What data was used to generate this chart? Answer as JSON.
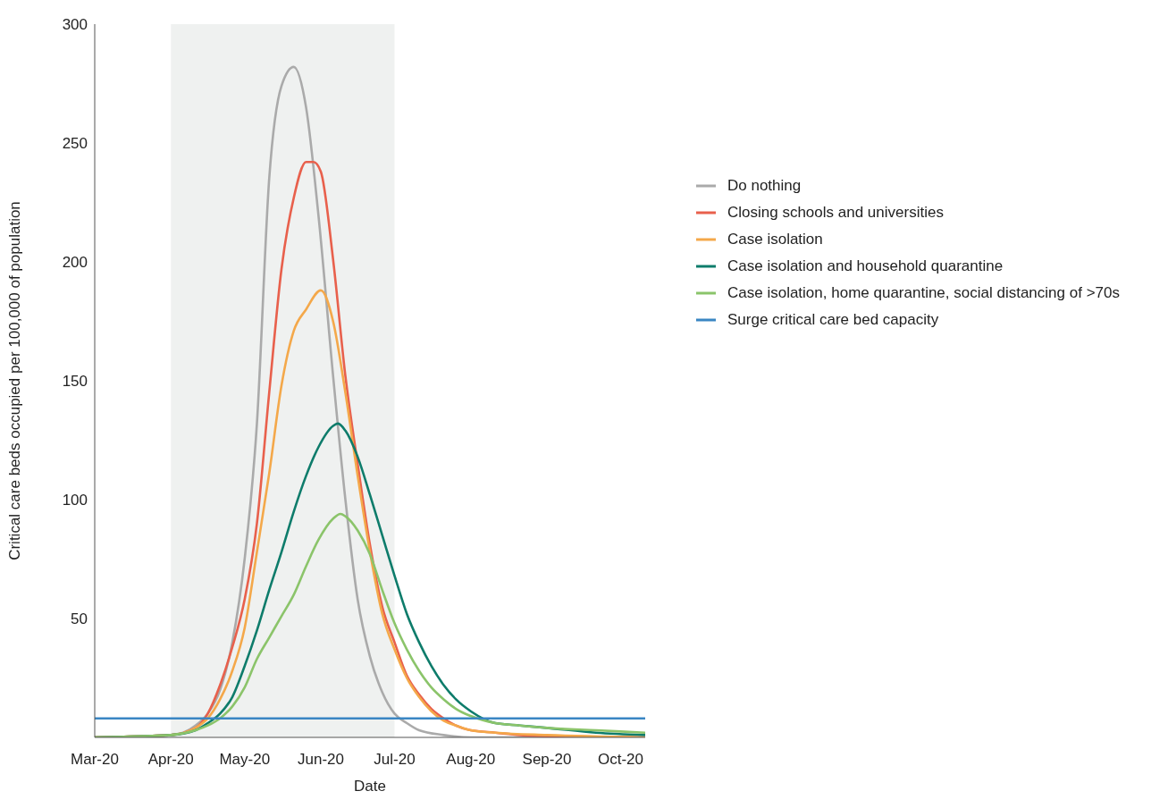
{
  "chart_data": {
    "type": "line",
    "xlabel": "Date",
    "ylabel": "Critical care beds occupied per 100,000 of population",
    "xlim": [
      "2020-03-01",
      "2020-10-11"
    ],
    "xticks": [
      {
        "value": "2020-03-01",
        "label": "Mar-20"
      },
      {
        "value": "2020-04-01",
        "label": "Apr-20"
      },
      {
        "value": "2020-05-01",
        "label": "May-20"
      },
      {
        "value": "2020-06-01",
        "label": "Jun-20"
      },
      {
        "value": "2020-07-01",
        "label": "Jul-20"
      },
      {
        "value": "2020-08-01",
        "label": "Aug-20"
      },
      {
        "value": "2020-09-01",
        "label": "Sep-20"
      },
      {
        "value": "2020-10-01",
        "label": "Oct-20"
      }
    ],
    "ylim": [
      0,
      300
    ],
    "yticks": [
      50,
      100,
      150,
      200,
      250,
      300
    ],
    "grid": false,
    "legend": "right",
    "marker": "none",
    "bands": [
      {
        "axis": "x",
        "from": "2020-04-01",
        "to": "2020-07-01",
        "color": "#eff1f0"
      }
    ],
    "series": [
      {
        "name": "Do nothing",
        "color": "#aaaaaa",
        "x": [
          "2020-03-01",
          "2020-03-25",
          "2020-04-01",
          "2020-04-06",
          "2020-04-11",
          "2020-04-16",
          "2020-04-21",
          "2020-04-26",
          "2020-05-01",
          "2020-05-06",
          "2020-05-11",
          "2020-05-16",
          "2020-05-21",
          "2020-05-26",
          "2020-05-31",
          "2020-06-06",
          "2020-06-11",
          "2020-06-16",
          "2020-06-21",
          "2020-06-26",
          "2020-07-01",
          "2020-07-06",
          "2020-07-11",
          "2020-07-21",
          "2020-08-01",
          "2020-10-11"
        ],
        "values": [
          0,
          0,
          1,
          2,
          5,
          10,
          20,
          40,
          75,
          132,
          235,
          274,
          282,
          265,
          220,
          152,
          100,
          58,
          34,
          19,
          10,
          6,
          3,
          1,
          0,
          0
        ]
      },
      {
        "name": "Closing schools and universities",
        "color": "#e8604c",
        "x": [
          "2020-03-01",
          "2020-04-01",
          "2020-04-11",
          "2020-04-16",
          "2020-04-21",
          "2020-04-26",
          "2020-05-01",
          "2020-05-06",
          "2020-05-11",
          "2020-05-16",
          "2020-05-21",
          "2020-05-26",
          "2020-05-29",
          "2020-06-01",
          "2020-06-06",
          "2020-06-11",
          "2020-06-16",
          "2020-06-21",
          "2020-06-26",
          "2020-07-01",
          "2020-07-06",
          "2020-07-11",
          "2020-07-16",
          "2020-07-21",
          "2020-07-26",
          "2020-08-01",
          "2020-08-11",
          "2020-08-21",
          "2020-09-01",
          "2020-10-11"
        ],
        "values": [
          0,
          1,
          4,
          10,
          22,
          38,
          58,
          90,
          145,
          197,
          227,
          242,
          242,
          238,
          201,
          152,
          115,
          81,
          55,
          40,
          26,
          18,
          12,
          8,
          5,
          3,
          2,
          1,
          0.5,
          0
        ]
      },
      {
        "name": "Case isolation",
        "color": "#f4a84a",
        "x": [
          "2020-03-01",
          "2020-04-01",
          "2020-04-11",
          "2020-04-16",
          "2020-04-21",
          "2020-04-26",
          "2020-05-01",
          "2020-05-06",
          "2020-05-11",
          "2020-05-16",
          "2020-05-21",
          "2020-05-26",
          "2020-06-01",
          "2020-06-06",
          "2020-06-11",
          "2020-06-16",
          "2020-06-21",
          "2020-06-26",
          "2020-07-01",
          "2020-07-06",
          "2020-07-11",
          "2020-07-16",
          "2020-07-21",
          "2020-07-26",
          "2020-08-01",
          "2020-08-11",
          "2020-09-01",
          "2020-10-11"
        ],
        "values": [
          0,
          1,
          4,
          8,
          16,
          28,
          46,
          78,
          111,
          148,
          171,
          180,
          188,
          175,
          145,
          110,
          78,
          52,
          37,
          25,
          17,
          11,
          7,
          5,
          3,
          2,
          1,
          0
        ]
      },
      {
        "name": "Case isolation and household quarantine",
        "color": "#0e7c6b",
        "x": [
          "2020-03-01",
          "2020-04-01",
          "2020-04-11",
          "2020-04-16",
          "2020-04-21",
          "2020-04-26",
          "2020-05-01",
          "2020-05-06",
          "2020-05-11",
          "2020-05-16",
          "2020-05-21",
          "2020-05-26",
          "2020-05-31",
          "2020-06-06",
          "2020-06-08",
          "2020-06-11",
          "2020-06-16",
          "2020-06-21",
          "2020-06-26",
          "2020-07-01",
          "2020-07-06",
          "2020-07-11",
          "2020-07-16",
          "2020-07-21",
          "2020-07-26",
          "2020-08-01",
          "2020-08-11",
          "2020-08-21",
          "2020-09-01",
          "2020-09-21",
          "2020-10-11"
        ],
        "values": [
          0,
          1,
          3,
          6,
          10,
          17,
          30,
          45,
          62,
          78,
          95,
          110,
          122,
          131,
          132,
          129,
          118,
          102,
          85,
          68,
          52,
          40,
          30,
          22,
          16,
          11,
          6,
          5,
          4,
          2,
          1
        ]
      },
      {
        "name": "Case isolation, home quarantine, social distancing of >70s",
        "color": "#8bc46a",
        "x": [
          "2020-03-01",
          "2020-04-01",
          "2020-04-11",
          "2020-04-16",
          "2020-04-21",
          "2020-04-26",
          "2020-05-01",
          "2020-05-06",
          "2020-05-11",
          "2020-05-16",
          "2020-05-21",
          "2020-05-26",
          "2020-05-31",
          "2020-06-06",
          "2020-06-09",
          "2020-06-11",
          "2020-06-16",
          "2020-06-21",
          "2020-06-26",
          "2020-07-01",
          "2020-07-06",
          "2020-07-11",
          "2020-07-16",
          "2020-07-21",
          "2020-07-26",
          "2020-08-01",
          "2020-08-11",
          "2020-08-21",
          "2020-09-01",
          "2020-09-21",
          "2020-10-11"
        ],
        "values": [
          0,
          1,
          3,
          5,
          8,
          13,
          21,
          33,
          42,
          51,
          60,
          72,
          83,
          92,
          94,
          93,
          87,
          77,
          62,
          48,
          37,
          28,
          21,
          16,
          12,
          9,
          6,
          5,
          4,
          3,
          2
        ]
      },
      {
        "name": "Surge critical care bed capacity",
        "color": "#3a86c3",
        "x": [
          "2020-03-01",
          "2020-10-11"
        ],
        "values": [
          8,
          8
        ]
      }
    ]
  }
}
